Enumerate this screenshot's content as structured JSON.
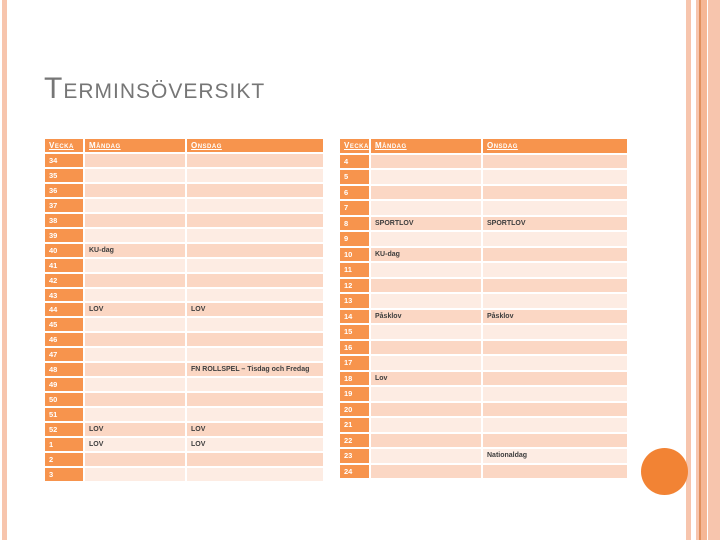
{
  "title": "Terminsöversikt",
  "colors": {
    "accent_orange": "#f7944d",
    "row_dark": "#fbd7c4",
    "row_light": "#fdece3",
    "title_gray": "#767676",
    "stripe_salmon": "#f7c5ad",
    "stripe_deep": "#e2905c",
    "stripe_mid": "#f6b795",
    "circle_orange": "#f28334",
    "event_text": "#3d3d3d"
  },
  "tables": [
    {
      "name": "autumn-term",
      "headers": [
        "Vecka",
        "Måndag",
        "Onsdag"
      ],
      "rows": [
        {
          "week": "34",
          "monday": "",
          "wednesday": ""
        },
        {
          "week": "35",
          "monday": "",
          "wednesday": ""
        },
        {
          "week": "36",
          "monday": "",
          "wednesday": ""
        },
        {
          "week": "37",
          "monday": "",
          "wednesday": ""
        },
        {
          "week": "38",
          "monday": "",
          "wednesday": ""
        },
        {
          "week": "39",
          "monday": "",
          "wednesday": ""
        },
        {
          "week": "40",
          "monday": "KU-dag",
          "wednesday": ""
        },
        {
          "week": "41",
          "monday": "",
          "wednesday": ""
        },
        {
          "week": "42",
          "monday": "",
          "wednesday": ""
        },
        {
          "week": "43",
          "monday": "",
          "wednesday": ""
        },
        {
          "week": "44",
          "monday": "LOV",
          "wednesday": "LOV"
        },
        {
          "week": "45",
          "monday": "",
          "wednesday": ""
        },
        {
          "week": "46",
          "monday": "",
          "wednesday": ""
        },
        {
          "week": "47",
          "monday": "",
          "wednesday": ""
        },
        {
          "week": "48",
          "monday": "",
          "wednesday": "FN ROLLSPEL – Tisdag och Fredag"
        },
        {
          "week": "49",
          "monday": "",
          "wednesday": ""
        },
        {
          "week": "50",
          "monday": "",
          "wednesday": ""
        },
        {
          "week": "51",
          "monday": "",
          "wednesday": ""
        },
        {
          "week": "52",
          "monday": "LOV",
          "wednesday": "LOV"
        },
        {
          "week": "1",
          "monday": "LOV",
          "wednesday": "LOV"
        },
        {
          "week": "2",
          "monday": "",
          "wednesday": ""
        },
        {
          "week": "3",
          "monday": "",
          "wednesday": ""
        }
      ]
    },
    {
      "name": "spring-term",
      "headers": [
        "Vecka",
        "Måndag",
        "Onsdag"
      ],
      "rows": [
        {
          "week": "4",
          "monday": "",
          "wednesday": ""
        },
        {
          "week": "5",
          "monday": "",
          "wednesday": ""
        },
        {
          "week": "6",
          "monday": "",
          "wednesday": ""
        },
        {
          "week": "7",
          "monday": "",
          "wednesday": ""
        },
        {
          "week": "8",
          "monday": "SPORTLOV",
          "wednesday": "SPORTLOV"
        },
        {
          "week": "9",
          "monday": "",
          "wednesday": ""
        },
        {
          "week": "10",
          "monday": "KU-dag",
          "wednesday": ""
        },
        {
          "week": "11",
          "monday": "",
          "wednesday": ""
        },
        {
          "week": "12",
          "monday": "",
          "wednesday": ""
        },
        {
          "week": "13",
          "monday": "",
          "wednesday": ""
        },
        {
          "week": "14",
          "monday": "Påsklov",
          "wednesday": "Påsklov"
        },
        {
          "week": "15",
          "monday": "",
          "wednesday": ""
        },
        {
          "week": "16",
          "monday": "",
          "wednesday": ""
        },
        {
          "week": "17",
          "monday": "",
          "wednesday": ""
        },
        {
          "week": "18",
          "monday": "Lov",
          "wednesday": ""
        },
        {
          "week": "19",
          "monday": "",
          "wednesday": ""
        },
        {
          "week": "20",
          "monday": "",
          "wednesday": ""
        },
        {
          "week": "21",
          "monday": "",
          "wednesday": ""
        },
        {
          "week": "22",
          "monday": "",
          "wednesday": ""
        },
        {
          "week": "23",
          "monday": "",
          "wednesday": "Nationaldag"
        },
        {
          "week": "24",
          "monday": "",
          "wednesday": ""
        }
      ]
    }
  ]
}
